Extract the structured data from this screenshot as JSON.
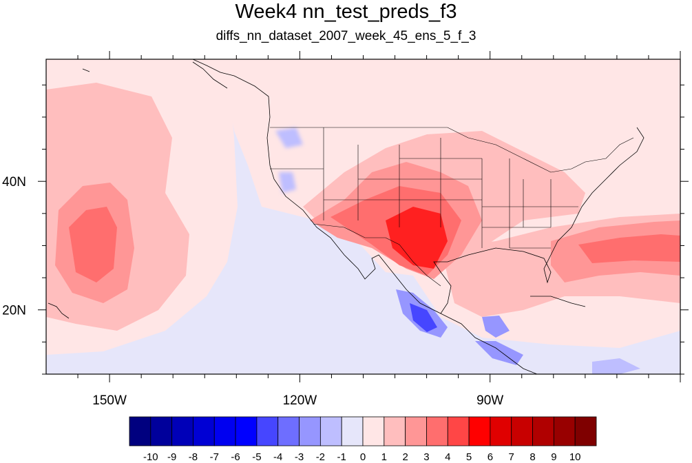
{
  "title": "Week4 nn_test_preds_f3",
  "subtitle": "diffs_nn_dataset_2007_week_45_ens_5_f_3",
  "map": {
    "lon_range": [
      -160,
      -60
    ],
    "lat_range": [
      10,
      59
    ],
    "x_ticks": [
      {
        "lon": -150,
        "label": "150W"
      },
      {
        "lon": -120,
        "label": "120W"
      },
      {
        "lon": -90,
        "label": "90W"
      }
    ],
    "y_ticks": [
      {
        "lat": 40,
        "label": "40N"
      },
      {
        "lat": 20,
        "label": "20N"
      }
    ]
  },
  "colorbar": {
    "labels": [
      "-10",
      "-9",
      "-8",
      "-7",
      "-6",
      "-5",
      "-4",
      "-3",
      "-2",
      "-1",
      "0",
      "1",
      "2",
      "3",
      "4",
      "5",
      "6",
      "7",
      "8",
      "9",
      "10"
    ],
    "colors": [
      "#00007f",
      "#00009b",
      "#0000b8",
      "#0000d4",
      "#0000f0",
      "#0000ff",
      "#4646ff",
      "#6e6eff",
      "#9696ff",
      "#bebeff",
      "#e6e6fa",
      "#ffe6e6",
      "#ffbebe",
      "#ff9696",
      "#ff6e6e",
      "#ff4646",
      "#ff0000",
      "#e00000",
      "#c80000",
      "#b00000",
      "#980000",
      "#7f0000"
    ]
  },
  "colors": {
    "background": "#e6e6fa",
    "neutral_positive": "#ffe6e6"
  }
}
